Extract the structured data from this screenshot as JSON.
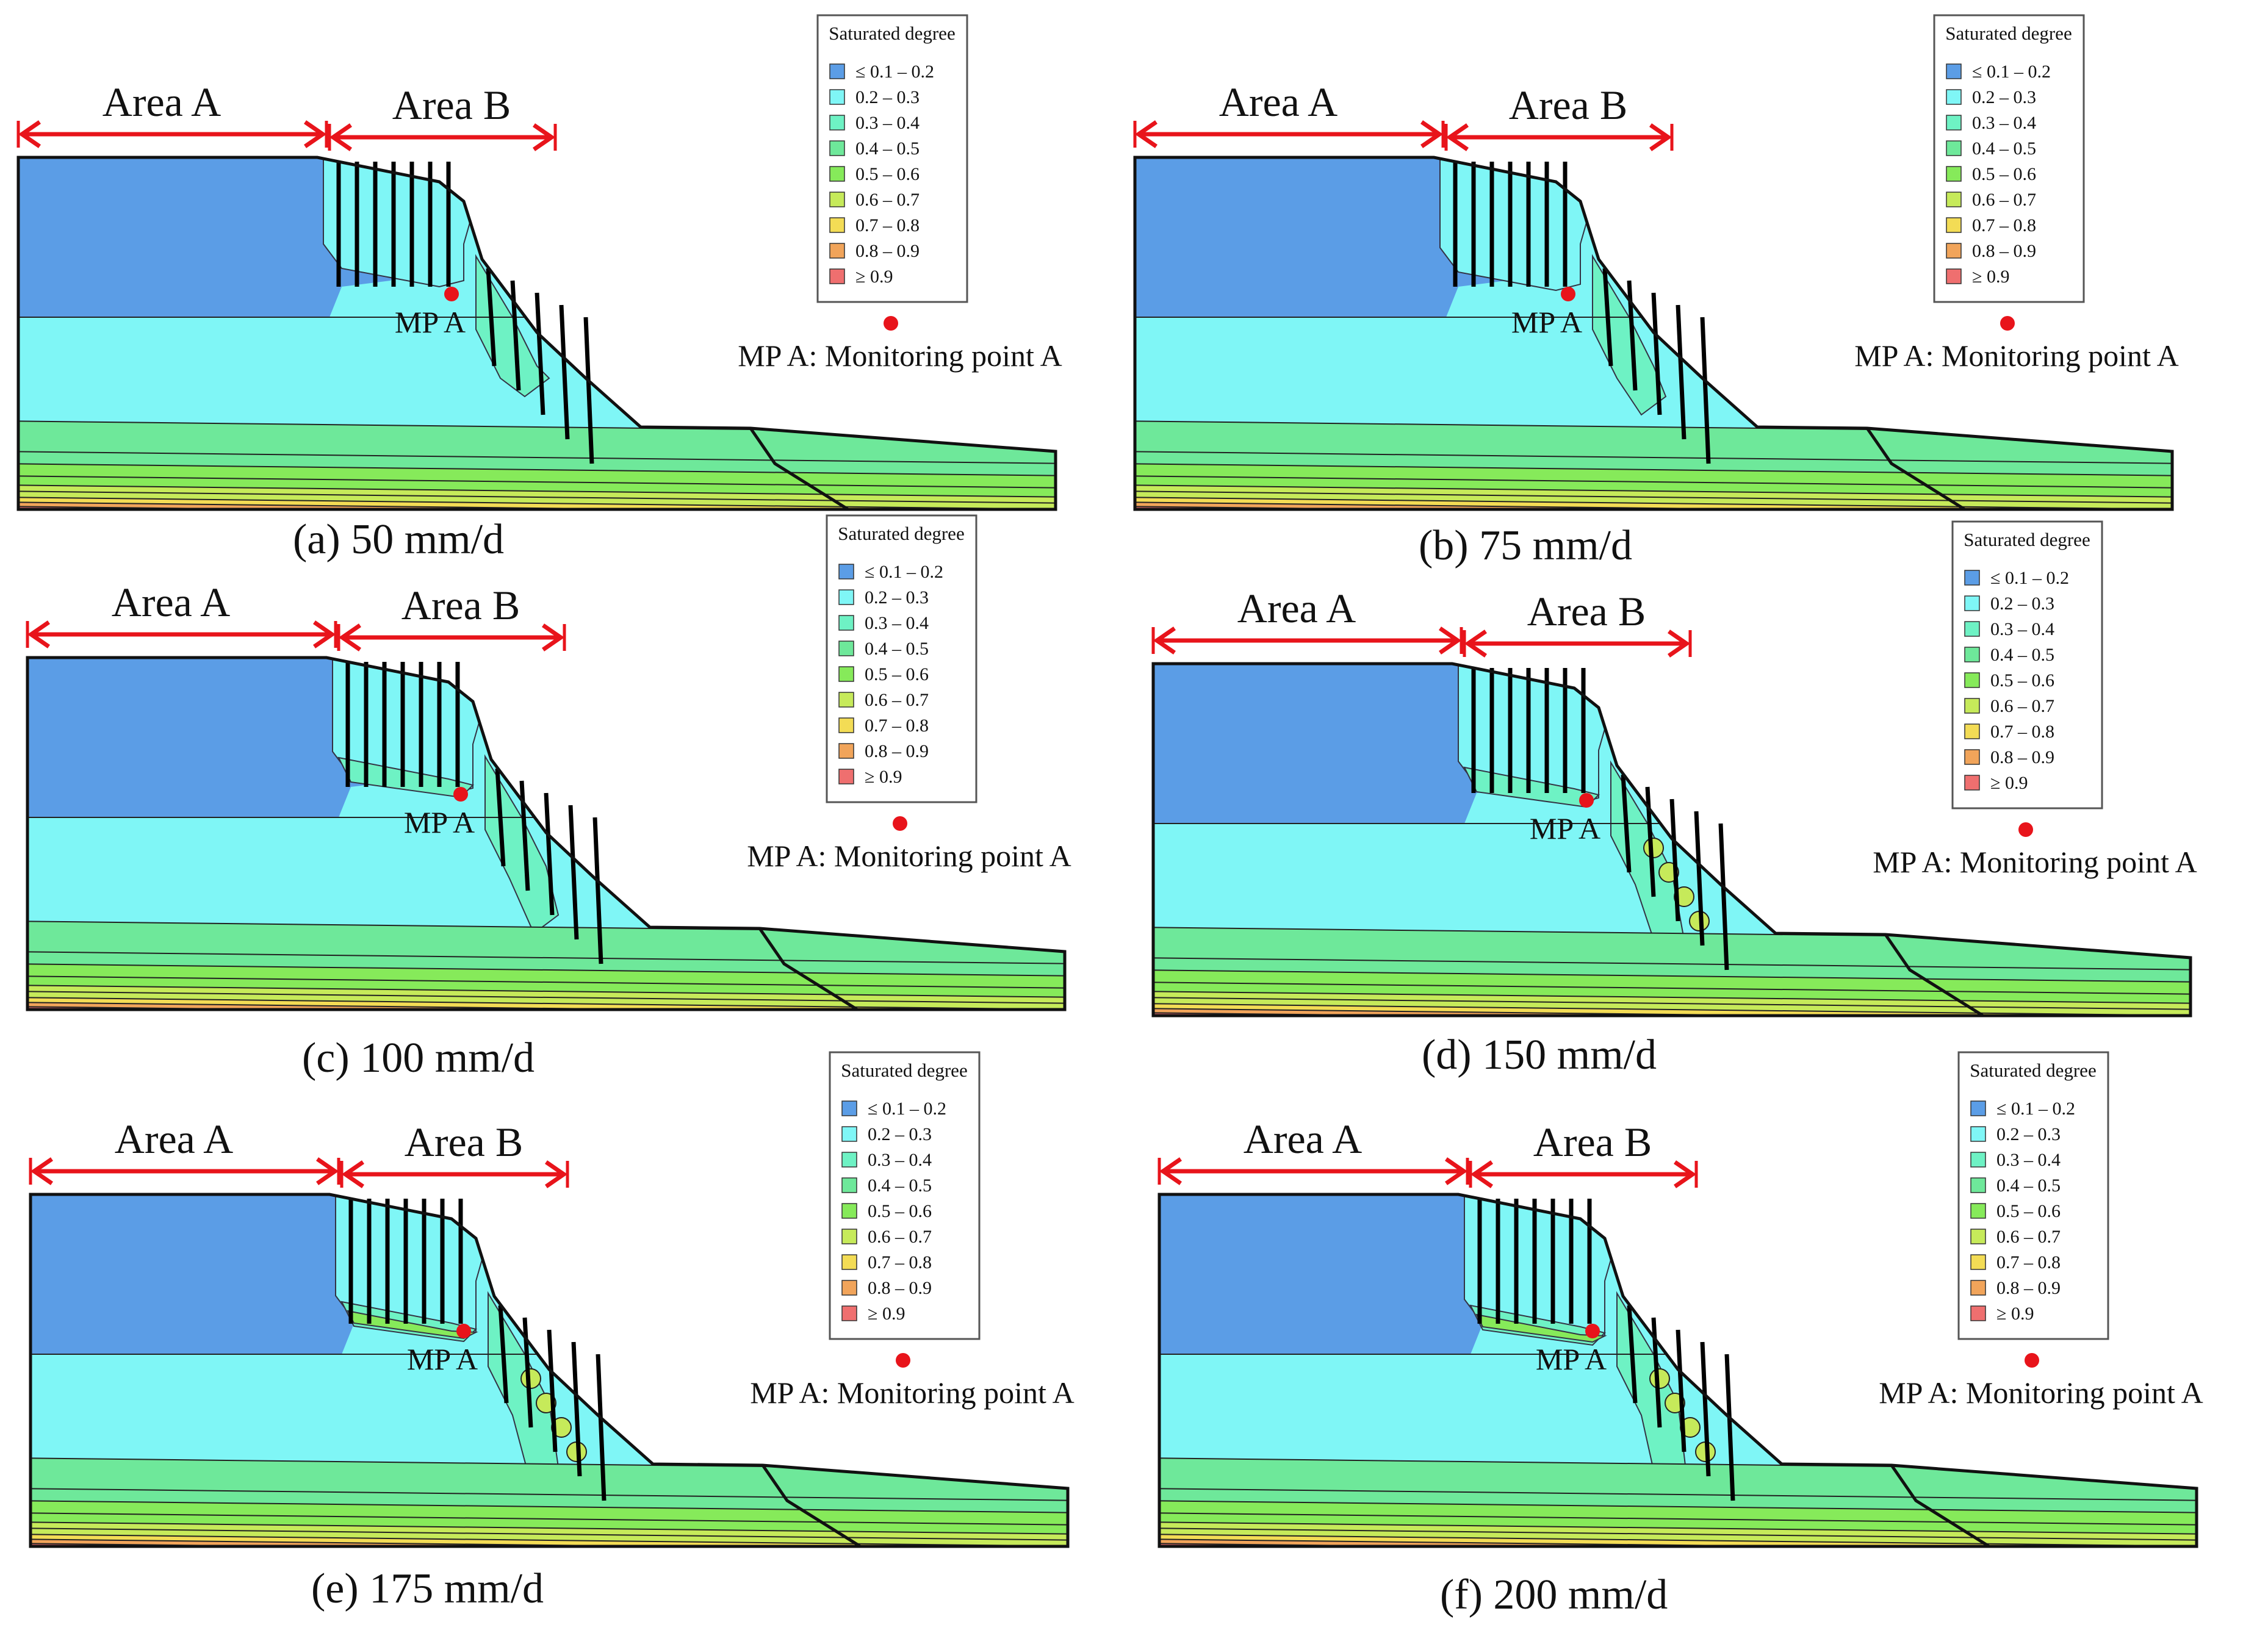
{
  "labels": {
    "area_a": "Area A",
    "area_b": "Area B",
    "mp_label": "MP A",
    "mp_note": "MP A: Monitoring point A"
  },
  "legend": {
    "title": "Saturated degree",
    "items": [
      {
        "label": "≤ 0.1 – 0.2",
        "color": "#5b9de6"
      },
      {
        "label": "0.2 – 0.3",
        "color": "#7ff6f6"
      },
      {
        "label": "0.3 – 0.4",
        "color": "#6ef2c4"
      },
      {
        "label": "0.4 – 0.5",
        "color": "#6ee89a"
      },
      {
        "label": "0.5 – 0.6",
        "color": "#86ea5a"
      },
      {
        "label": "0.6 – 0.7",
        "color": "#c6ea5a"
      },
      {
        "label": "0.7 – 0.8",
        "color": "#f3dc55"
      },
      {
        "label": "0.8 – 0.9",
        "color": "#f1a45a"
      },
      {
        "label": "≥ 0.9",
        "color": "#ef6f6f"
      }
    ]
  },
  "colors": {
    "arrow": "#e8141b",
    "monitor_point": "#e8141b",
    "outline": "#111111"
  },
  "panels": [
    {
      "caption": "(a) 50 mm/d",
      "rain_stage": 0
    },
    {
      "caption": "(b) 75 mm/d",
      "rain_stage": 1
    },
    {
      "caption": "(c) 100 mm/d",
      "rain_stage": 2
    },
    {
      "caption": "(d) 150 mm/d",
      "rain_stage": 3
    },
    {
      "caption": "(e) 175 mm/d",
      "rain_stage": 4
    },
    {
      "caption": "(f) 200 mm/d",
      "rain_stage": 5
    }
  ]
}
